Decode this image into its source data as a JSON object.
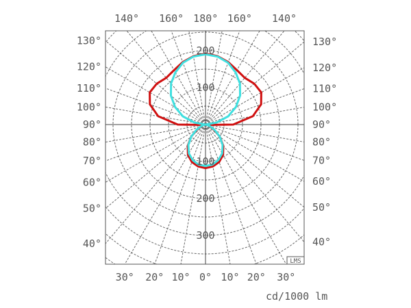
{
  "chart_data": {
    "type": "polar-line",
    "unit_label": "cd/1000 lm",
    "watermark": "LMS",
    "radial_max": 500,
    "radial_grid_step": 50,
    "radial_tick_labels_upper": [
      "100",
      "200"
    ],
    "radial_tick_labels_lower": [
      "100",
      "200",
      "300"
    ],
    "angle_grid_step_deg": 10,
    "top_angle_labels": [
      "140°",
      "160°",
      "180°",
      "160°",
      "140°"
    ],
    "side_angle_labels": [
      "130°",
      "120°",
      "110°",
      "100°",
      "90°",
      "80°",
      "70°",
      "60°",
      "50°",
      "40°"
    ],
    "bottom_angle_labels": [
      "30°",
      "20°",
      "10°",
      "0°",
      "10°",
      "20°",
      "30°"
    ],
    "grid": true,
    "angles_deg": [
      0,
      10,
      20,
      30,
      40,
      50,
      60,
      70,
      80,
      90,
      100,
      110,
      120,
      130,
      140,
      150,
      160,
      170,
      180
    ],
    "series": [
      {
        "color": "#d01010",
        "values": [
          118,
          115,
          108,
          95,
          75,
          50,
          25,
          10,
          5,
          75,
          130,
          160,
          174,
          172,
          165,
          170,
          180,
          188,
          192
        ]
      },
      {
        "color": "#40e0e0",
        "values": [
          112,
          110,
          102,
          90,
          72,
          50,
          28,
          12,
          3,
          0,
          30,
          65,
          95,
          122,
          145,
          163,
          178,
          187,
          190
        ]
      }
    ]
  }
}
